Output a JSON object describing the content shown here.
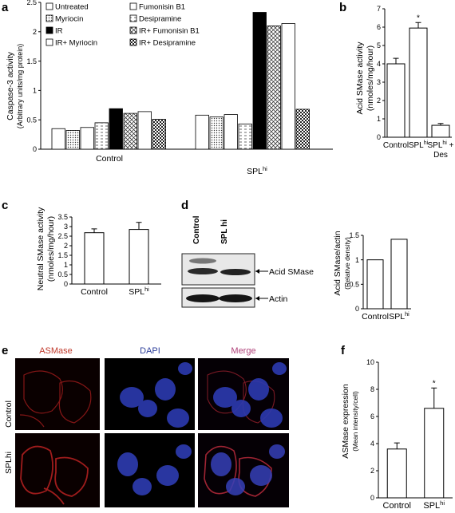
{
  "panels": {
    "a": {
      "letter": "a",
      "ylabel": "Caspase-3 activity",
      "ylabel2": "(Arbitrary units/mg protein)",
      "legend": [
        "Untreated",
        "Fumonisin B1",
        "Myriocin",
        "Desipramine",
        "IR",
        "IR+ Fumonisin B1",
        "IR+ Myriocin",
        "IR+ Desipramine"
      ]
    },
    "b": {
      "letter": "b",
      "ylabel": "Acid SMase activity",
      "ylabel2": "(nmoles/mg/hour)",
      "sig": "*"
    },
    "c": {
      "letter": "c",
      "ylabel": "Neutral SMase activity",
      "ylabel2": "(nmoles/mg/hour)"
    },
    "d": {
      "letter": "d",
      "blot_lanes": [
        "Control",
        "SPL hi"
      ],
      "blot_labels": [
        "Acid SMase",
        "Actin"
      ],
      "ylabel": "Acid SMase/actin",
      "ylabel2": "(Relative density)"
    },
    "e": {
      "letter": "e",
      "columns": [
        "ASMase",
        "DAPI",
        "Merge"
      ],
      "rows": [
        "Control",
        "SPLhi"
      ],
      "column_colors": [
        "#c0392b",
        "#2c3e9a",
        "#b0427a"
      ]
    },
    "f": {
      "letter": "f",
      "ylabel": "ASMase expression",
      "ylabel2": "(Mean intensity/cell)",
      "sig": "*"
    }
  },
  "chart_data": [
    {
      "id": "a",
      "type": "bar",
      "categories": [
        "Control",
        "SPLhi"
      ],
      "series": [
        {
          "name": "Untreated",
          "values": [
            0.35,
            0.58
          ]
        },
        {
          "name": "Myriocin",
          "values": [
            0.32,
            0.55
          ]
        },
        {
          "name": "Fumonisin B1",
          "values": [
            0.37,
            0.59
          ]
        },
        {
          "name": "Desipramine",
          "values": [
            0.45,
            0.43
          ]
        },
        {
          "name": "IR",
          "values": [
            0.69,
            2.33
          ]
        },
        {
          "name": "IR+ Fumonisin B1",
          "values": [
            0.61,
            2.1
          ]
        },
        {
          "name": "IR+ Myriocin",
          "values": [
            0.64,
            2.14
          ]
        },
        {
          "name": "IR+ Desipramine",
          "values": [
            0.51,
            0.68
          ]
        }
      ],
      "ylim": [
        0,
        2.5
      ],
      "yticks": [
        "0",
        "0.5",
        "1",
        "1.5",
        "2",
        "2.5"
      ],
      "xtick_labels": [
        "Control",
        "SPL",
        "hi"
      ]
    },
    {
      "id": "b",
      "type": "bar",
      "categories": [
        "Control",
        "SPLhi",
        "SPLhi + Des"
      ],
      "values": [
        4.0,
        5.95,
        0.65
      ],
      "errors": [
        0.3,
        0.3,
        0.1
      ],
      "ylim": [
        0,
        7
      ],
      "yticks": [
        "0",
        "1",
        "2",
        "3",
        "4",
        "5",
        "6",
        "7"
      ]
    },
    {
      "id": "c",
      "type": "bar",
      "categories": [
        "Control",
        "SPLhi"
      ],
      "values": [
        2.68,
        2.85
      ],
      "errors": [
        0.2,
        0.37
      ],
      "ylim": [
        0,
        3.5
      ],
      "yticks": [
        "0",
        "0.5",
        "1",
        "1.5",
        "2",
        "2.5",
        "3",
        "3.5"
      ]
    },
    {
      "id": "d",
      "type": "bar",
      "categories": [
        "Control",
        "SPLhi"
      ],
      "values": [
        1.0,
        1.42
      ],
      "ylim": [
        0,
        1.5
      ],
      "yticks": [
        "0",
        "0.5",
        "1",
        "1.5"
      ]
    },
    {
      "id": "f",
      "type": "bar",
      "categories": [
        "Control",
        "SPLhi"
      ],
      "values": [
        3.6,
        6.6
      ],
      "errors": [
        0.45,
        1.5
      ],
      "ylim": [
        0,
        10
      ],
      "yticks": [
        "0",
        "2",
        "4",
        "6",
        "8",
        "10"
      ]
    }
  ]
}
